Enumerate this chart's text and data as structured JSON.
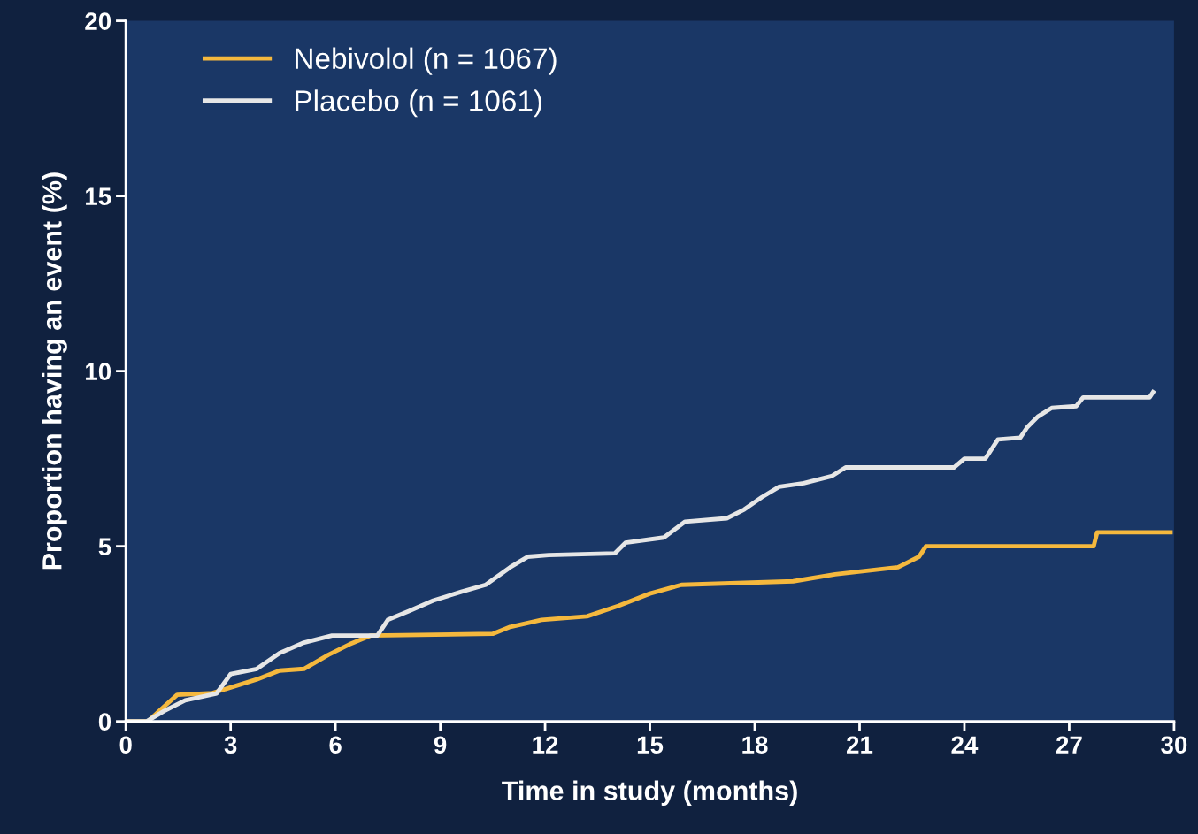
{
  "chart_data": {
    "type": "line",
    "xlabel": "Time in study (months)",
    "ylabel": "Proportion having an event (%)",
    "xlim": [
      0,
      30
    ],
    "ylim": [
      0,
      20
    ],
    "xticks": [
      0,
      3,
      6,
      9,
      12,
      15,
      18,
      21,
      24,
      27,
      30
    ],
    "yticks": [
      0,
      5,
      10,
      15,
      20
    ],
    "grid": false,
    "legend": "top left",
    "marker": "none",
    "line_style": "solid",
    "series": [
      {
        "name": "Nebivolol (n = 1067)",
        "color": "#f5b83d",
        "x": [
          0,
          0.63,
          0.96,
          1.47,
          2.48,
          3.1,
          3.75,
          4.4,
          5.1,
          5.8,
          6.4,
          7.0,
          10.5,
          11.0,
          11.9,
          13.2,
          14.1,
          15.0,
          15.9,
          19.1,
          20.3,
          22.1,
          22.7,
          22.9,
          27.7,
          27.8,
          29.9
        ],
        "values": [
          0,
          0,
          0.3,
          0.76,
          0.81,
          1.0,
          1.2,
          1.45,
          1.5,
          1.9,
          2.2,
          2.45,
          2.5,
          2.7,
          2.9,
          3.0,
          3.3,
          3.65,
          3.9,
          4.0,
          4.2,
          4.4,
          4.7,
          5.0,
          5.0,
          5.4,
          5.4
        ]
      },
      {
        "name": "Placebo (n = 1061)",
        "color": "#e6e6e6",
        "x": [
          0,
          0.6,
          1.1,
          1.7,
          2.6,
          3.0,
          3.75,
          4.4,
          5.1,
          5.9,
          7.2,
          7.5,
          8.1,
          8.8,
          9.6,
          10.3,
          11.0,
          11.5,
          12.1,
          14.0,
          14.3,
          15.4,
          16.0,
          17.2,
          17.7,
          18.2,
          18.7,
          19.4,
          20.2,
          20.6,
          23.7,
          24.0,
          24.6,
          24.96,
          25.6,
          25.8,
          26.1,
          26.5,
          27.2,
          27.4,
          29.3,
          29.4
        ],
        "values": [
          0,
          0,
          0.3,
          0.6,
          0.8,
          1.35,
          1.5,
          1.95,
          2.25,
          2.45,
          2.45,
          2.9,
          3.15,
          3.45,
          3.7,
          3.9,
          4.4,
          4.7,
          4.75,
          4.8,
          5.1,
          5.25,
          5.7,
          5.8,
          6.05,
          6.4,
          6.7,
          6.8,
          7.0,
          7.25,
          7.25,
          7.5,
          7.5,
          8.05,
          8.1,
          8.4,
          8.7,
          8.95,
          9.0,
          9.25,
          9.25,
          9.4
        ]
      }
    ]
  }
}
